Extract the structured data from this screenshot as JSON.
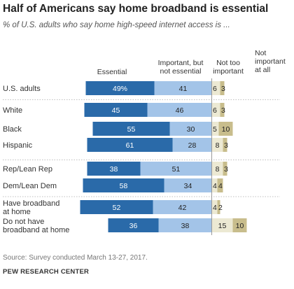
{
  "title": "Half of Americans say home broadband is essential",
  "subtitle": "% of U.S. adults who say home high-speed internet access is ...",
  "chart_data": {
    "type": "bar",
    "stacked": true,
    "legend": [
      "Essential",
      "Important, but not essential",
      "Not too important",
      "Not important at all"
    ],
    "categories": [
      "U.S. adults",
      "White",
      "Black",
      "Hispanic",
      "Rep/Lean Rep",
      "Dem/Lean Dem",
      "Have broadband at home",
      "Do not have broadband at home"
    ],
    "series": [
      {
        "name": "Essential",
        "values": [
          49,
          45,
          55,
          61,
          38,
          58,
          52,
          36
        ],
        "labels": [
          "49%",
          "45",
          "55",
          "61",
          "38",
          "58",
          "52",
          "36"
        ],
        "color": "#2a6aa9"
      },
      {
        "name": "Important, but not essential",
        "values": [
          41,
          46,
          30,
          28,
          51,
          34,
          42,
          38
        ],
        "labels": [
          "41",
          "46",
          "30",
          "28",
          "51",
          "34",
          "42",
          "38"
        ],
        "color": "#a3c4e8"
      },
      {
        "name": "Not too important",
        "values": [
          6,
          6,
          5,
          8,
          8,
          4,
          4,
          15
        ],
        "labels": [
          "6",
          "6",
          "5",
          "8",
          "8",
          "4",
          "4",
          "15"
        ],
        "color": "#ece9d3"
      },
      {
        "name": "Not important at all",
        "values": [
          3,
          3,
          10,
          3,
          3,
          4,
          2,
          10
        ],
        "labels": [
          "3",
          "3",
          "10",
          "3",
          "3",
          "4",
          "2",
          "10"
        ],
        "color": "#c8bd8c"
      }
    ]
  },
  "footer": {
    "source": "Source: Survey conducted March 13-27, 2017.",
    "brand": "PEW RESEARCH CENTER"
  }
}
